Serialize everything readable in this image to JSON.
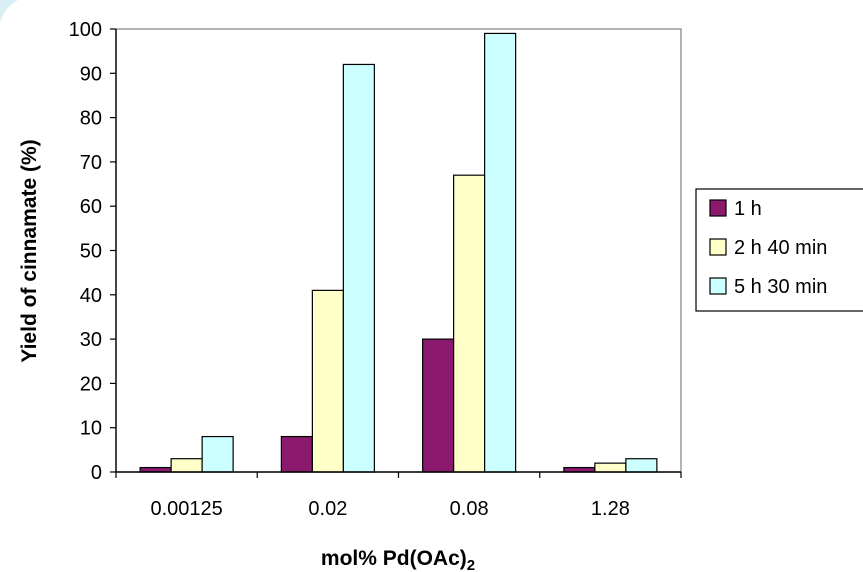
{
  "chart_data": {
    "type": "bar",
    "categories": [
      "0.00125",
      "0.02",
      "0.08",
      "1.28"
    ],
    "series": [
      {
        "name": "1 h",
        "values": [
          1,
          8,
          30,
          1
        ],
        "color": "#8B1A6E"
      },
      {
        "name": "2 h 40 min",
        "values": [
          3,
          41,
          67,
          2
        ],
        "color": "#FFFFC8"
      },
      {
        "name": "5 h 30 min",
        "values": [
          8,
          92,
          99,
          3
        ],
        "color": "#CCFFFF"
      }
    ],
    "xlabel": "mol% Pd(OAc)",
    "xlabel_subscript": "2",
    "ylabel": "Yield of cinnamate (%)",
    "ylim": [
      0,
      100
    ],
    "yticks": [
      0,
      10,
      20,
      30,
      40,
      50,
      60,
      70,
      80,
      90,
      100
    ],
    "grid": false,
    "legend_position": "right"
  }
}
